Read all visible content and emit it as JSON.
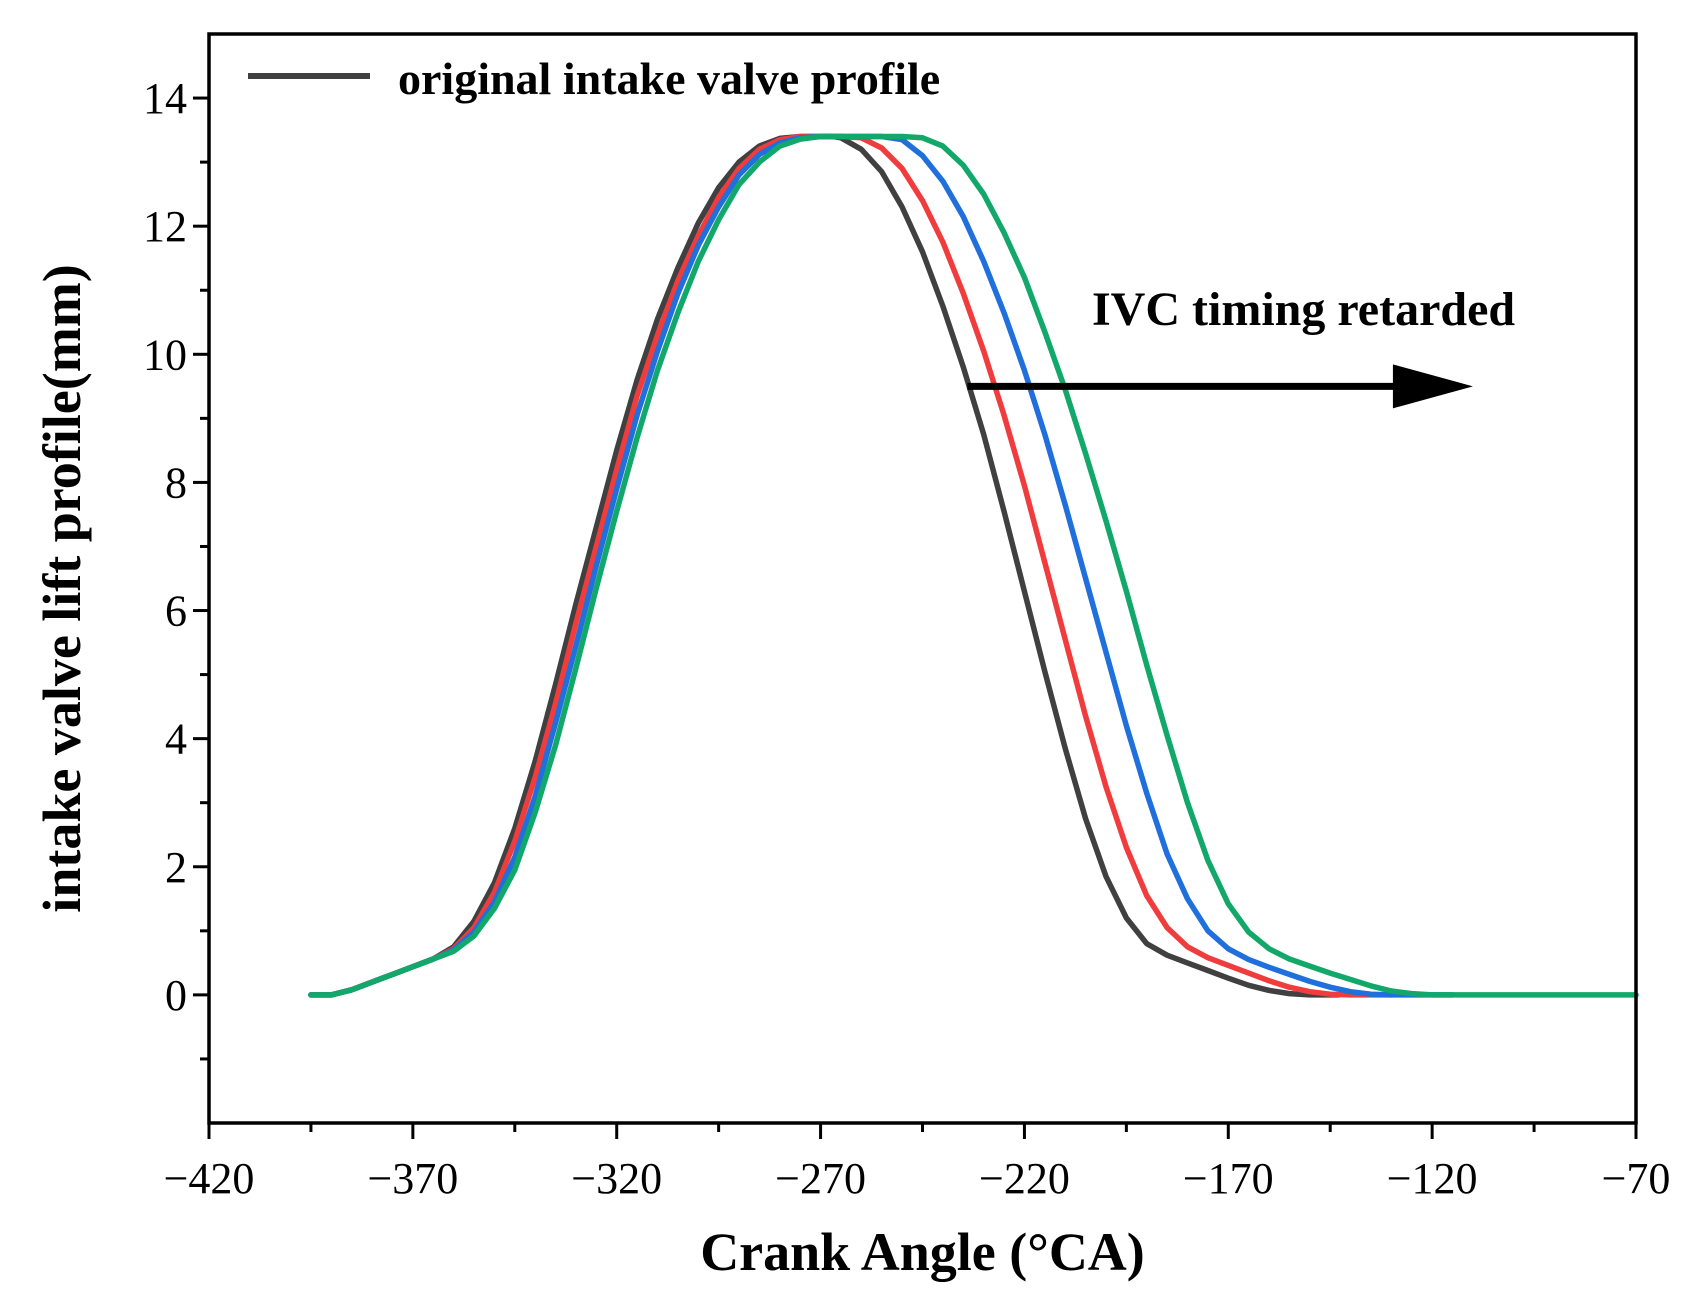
{
  "chart_data": {
    "type": "line",
    "xlabel": "Crank Angle (°CA)",
    "ylabel": "intake valve lift profile(mm)",
    "xlim": [
      -420,
      -70
    ],
    "ylim": [
      -2,
      15
    ],
    "x_ticks": [
      -420,
      -370,
      -320,
      -270,
      -220,
      -170,
      -120,
      -70
    ],
    "x_tick_labels": [
      "−420",
      "−370",
      "−320",
      "−270",
      "−220",
      "−170",
      "−120",
      "−70"
    ],
    "x_minor_ticks": [
      -395,
      -345,
      -295,
      -245,
      -195,
      -145,
      -95
    ],
    "y_ticks": [
      0,
      2,
      4,
      6,
      8,
      10,
      12,
      14
    ],
    "y_tick_labels": [
      "0",
      "2",
      "4",
      "6",
      "8",
      "10",
      "12",
      "14"
    ],
    "y_minor_ticks": [
      -1,
      1,
      3,
      5,
      7,
      9,
      11,
      13
    ],
    "legend": [
      "original intake valve profile"
    ],
    "legend_position": "top-left",
    "annotation": {
      "text": "IVC timing retarded",
      "arrow_from": [
        -234,
        9.5
      ],
      "arrow_to": [
        -110,
        9.5
      ]
    },
    "series": [
      {
        "name": "original intake valve profile",
        "color": "#404040",
        "x": [
          -395,
          -390,
          -385,
          -380,
          -375,
          -370,
          -365,
          -360,
          -355,
          -350,
          -345,
          -340,
          -335,
          -330,
          -325,
          -320,
          -315,
          -310,
          -305,
          -300,
          -295,
          -290,
          -285,
          -280,
          -275,
          -270,
          -267,
          -265,
          -260,
          -255,
          -250,
          -245,
          -240,
          -235,
          -230,
          -225,
          -220,
          -215,
          -210,
          -205,
          -200,
          -195,
          -190,
          -185,
          -180,
          -175,
          -170,
          -165,
          -160,
          -155,
          -150,
          -145,
          -143
        ],
        "values": [
          0,
          0,
          0.08,
          0.2,
          0.32,
          0.44,
          0.56,
          0.75,
          1.15,
          1.75,
          2.6,
          3.65,
          4.85,
          6.1,
          7.3,
          8.5,
          9.6,
          10.55,
          11.35,
          12.05,
          12.6,
          13.0,
          13.25,
          13.37,
          13.4,
          13.4,
          13.4,
          13.38,
          13.2,
          12.85,
          12.3,
          11.6,
          10.75,
          9.8,
          8.75,
          7.55,
          6.3,
          5.05,
          3.85,
          2.75,
          1.85,
          1.2,
          0.8,
          0.62,
          0.5,
          0.38,
          0.26,
          0.15,
          0.07,
          0.02,
          0,
          0,
          0
        ]
      },
      {
        "name": "",
        "color": "#f03c3c",
        "x": [
          -395,
          -390,
          -385,
          -380,
          -375,
          -370,
          -365,
          -360,
          -355,
          -350,
          -345,
          -340,
          -335,
          -330,
          -325,
          -320,
          -315,
          -310,
          -305,
          -300,
          -295,
          -290,
          -285,
          -280,
          -275,
          -270,
          -265,
          -260,
          -255,
          -250,
          -245,
          -240,
          -235,
          -230,
          -225,
          -220,
          -215,
          -210,
          -205,
          -200,
          -195,
          -190,
          -185,
          -180,
          -175,
          -170,
          -165,
          -160,
          -155,
          -150,
          -145,
          -140,
          -135,
          -130
        ],
        "values": [
          0,
          0,
          0.08,
          0.2,
          0.32,
          0.44,
          0.56,
          0.72,
          1.05,
          1.6,
          2.4,
          3.4,
          4.55,
          5.8,
          7.0,
          8.2,
          9.35,
          10.3,
          11.15,
          11.85,
          12.45,
          12.9,
          13.2,
          13.35,
          13.4,
          13.4,
          13.4,
          13.38,
          13.22,
          12.9,
          12.4,
          11.75,
          10.95,
          10.05,
          9.05,
          7.95,
          6.75,
          5.55,
          4.35,
          3.25,
          2.3,
          1.55,
          1.05,
          0.75,
          0.58,
          0.46,
          0.34,
          0.22,
          0.12,
          0.05,
          0.01,
          0,
          0,
          0
        ]
      },
      {
        "name": "",
        "color": "#1f6fdc",
        "x": [
          -395,
          -390,
          -385,
          -380,
          -375,
          -370,
          -365,
          -360,
          -355,
          -350,
          -345,
          -340,
          -335,
          -330,
          -325,
          -320,
          -315,
          -310,
          -305,
          -300,
          -295,
          -290,
          -285,
          -280,
          -275,
          -270,
          -265,
          -260,
          -255,
          -250,
          -245,
          -240,
          -235,
          -230,
          -225,
          -220,
          -215,
          -210,
          -205,
          -200,
          -195,
          -190,
          -185,
          -180,
          -175,
          -170,
          -165,
          -160,
          -155,
          -150,
          -145,
          -140,
          -135,
          -130,
          -125,
          -120,
          -115
        ],
        "values": [
          0,
          0,
          0.08,
          0.2,
          0.32,
          0.44,
          0.56,
          0.7,
          0.98,
          1.45,
          2.15,
          3.1,
          4.25,
          5.45,
          6.7,
          7.9,
          9.05,
          10.05,
          10.95,
          11.7,
          12.3,
          12.8,
          13.12,
          13.3,
          13.38,
          13.4,
          13.4,
          13.4,
          13.4,
          13.35,
          13.1,
          12.7,
          12.15,
          11.45,
          10.65,
          9.75,
          8.75,
          7.65,
          6.5,
          5.35,
          4.2,
          3.15,
          2.2,
          1.5,
          1.0,
          0.72,
          0.55,
          0.43,
          0.32,
          0.21,
          0.12,
          0.05,
          0.01,
          0,
          0,
          0,
          0
        ]
      },
      {
        "name": "",
        "color": "#12a86a",
        "x": [
          -395,
          -390,
          -385,
          -380,
          -375,
          -370,
          -365,
          -360,
          -355,
          -350,
          -345,
          -340,
          -335,
          -330,
          -325,
          -320,
          -315,
          -310,
          -305,
          -300,
          -295,
          -290,
          -285,
          -280,
          -275,
          -270,
          -265,
          -260,
          -255,
          -250,
          -245,
          -240,
          -235,
          -230,
          -225,
          -220,
          -215,
          -210,
          -205,
          -200,
          -195,
          -190,
          -185,
          -180,
          -175,
          -170,
          -165,
          -160,
          -155,
          -150,
          -145,
          -140,
          -135,
          -130,
          -125,
          -120,
          -115,
          -110,
          -105,
          -100,
          -95,
          -90,
          -85,
          -80,
          -75,
          -70
        ],
        "values": [
          0,
          0,
          0.08,
          0.2,
          0.32,
          0.44,
          0.56,
          0.68,
          0.92,
          1.35,
          1.95,
          2.85,
          3.9,
          5.1,
          6.35,
          7.55,
          8.7,
          9.75,
          10.65,
          11.45,
          12.1,
          12.65,
          13.0,
          13.25,
          13.36,
          13.4,
          13.4,
          13.4,
          13.4,
          13.4,
          13.38,
          13.25,
          12.95,
          12.5,
          11.9,
          11.2,
          10.35,
          9.45,
          8.45,
          7.4,
          6.3,
          5.15,
          4.05,
          3.0,
          2.1,
          1.42,
          0.98,
          0.72,
          0.56,
          0.45,
          0.34,
          0.24,
          0.14,
          0.06,
          0.02,
          0,
          0,
          0,
          0,
          0,
          0,
          0,
          0,
          0,
          0,
          0
        ]
      }
    ]
  }
}
